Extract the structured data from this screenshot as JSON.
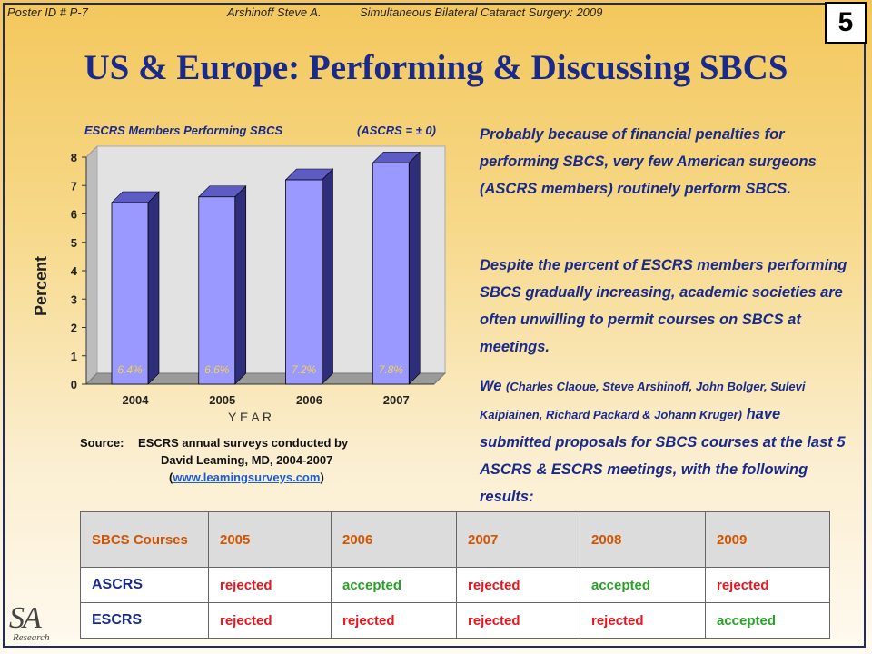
{
  "header": {
    "poster_id": "Poster ID # P-7",
    "author": "Arshinoff Steve A.",
    "subject": "Simultaneous Bilateral Cataract Surgery: 2009",
    "slide_number": "5"
  },
  "title": "US & Europe: Performing & Discussing SBCS",
  "chart_data": {
    "type": "bar",
    "title": "ESCRS Members Performing SBCS",
    "subtitle": "(ASCRS = ± 0)",
    "categories": [
      "2004",
      "2005",
      "2006",
      "2007"
    ],
    "values": [
      6.4,
      6.6,
      7.2,
      7.8
    ],
    "data_labels": [
      "6.4%",
      "6.6%",
      "7.2%",
      "7.8%"
    ],
    "xlabel": "Y E A R",
    "ylabel": "Percent",
    "ylim": [
      0,
      8
    ],
    "yticks": [
      "0",
      "1",
      "2",
      "3",
      "4",
      "5",
      "6",
      "7",
      "8"
    ],
    "grid": false,
    "colors": {
      "bar_front": "#9999ff",
      "bar_side": "#2e2e7a",
      "bar_top": "#5c5cc4",
      "label": "#f5d24a"
    }
  },
  "source": {
    "label": "Source:",
    "line1": "ESCRS annual surveys conducted by",
    "line2": "David Leaming, MD, 2004-2007",
    "open": "(",
    "link": "www.leamingsurveys.com",
    "close": ")"
  },
  "paragraphs": {
    "p1": "Probably because of financial penalties for performing SBCS, very few American surgeons (ASCRS members) routinely perform SBCS.",
    "p2": "Despite the percent of ESCRS members performing SBCS gradually increasing, academic societies are often unwilling to permit courses on SBCS at meetings.",
    "p3_we": "We",
    "p3_names": "(Charles Claoue, Steve Arshinoff, John Bolger, Sulevi Kaipiainen, Richard Packard & Johann Kruger)",
    "p3_rest": "have submitted proposals for SBCS courses at the last 5 ASCRS & ESCRS meetings, with the following results:"
  },
  "results_table": {
    "header_label": "SBCS Courses",
    "years": [
      "2005",
      "2006",
      "2007",
      "2008",
      "2009"
    ],
    "rows": [
      {
        "label": "ASCRS",
        "values": [
          "rejected",
          "accepted",
          "rejected",
          "accepted",
          "rejected"
        ]
      },
      {
        "label": "ESCRS",
        "values": [
          "rejected",
          "rejected",
          "rejected",
          "rejected",
          "accepted"
        ]
      }
    ],
    "colors": {
      "rejected": "#e8141e",
      "accepted": "#2aa02a",
      "header_text": "#d35400"
    }
  },
  "logo": {
    "mark": "SA",
    "text": "Research"
  }
}
